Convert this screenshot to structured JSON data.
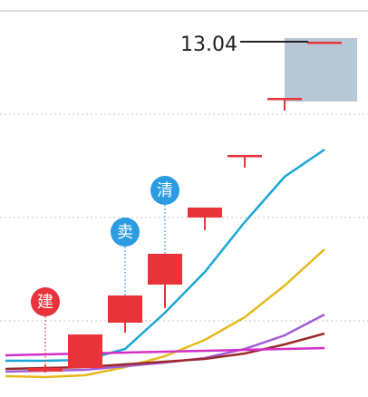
{
  "chart_data": {
    "type": "candlestick",
    "categories": [
      null,
      null,
      null,
      null,
      null,
      null,
      null,
      null,
      null
    ],
    "ylim": [
      9.12,
      13.5
    ],
    "grid_lines": [
      12.24,
      11.1,
      9.96
    ],
    "up_color": "#e8333a",
    "open": [
      null,
      9.4,
      9.44,
      9.94,
      10.36,
      11.1,
      11.77,
      12.4,
      13.02
    ],
    "close": [
      null,
      9.44,
      9.81,
      10.24,
      10.7,
      11.21,
      11.79,
      12.42,
      13.04
    ],
    "high": [
      null,
      9.47,
      9.81,
      10.24,
      10.7,
      11.21,
      11.79,
      12.42,
      13.04
    ],
    "low": [
      null,
      9.39,
      9.44,
      9.83,
      10.1,
      10.96,
      11.65,
      12.28,
      13.02
    ],
    "last_price": 13.04,
    "series": [
      {
        "color": "#1aa7d8",
        "values": [
          9.52,
          9.52,
          9.53,
          9.65,
          10.05,
          10.5,
          11.05,
          11.55,
          11.85
        ]
      },
      {
        "color": "#e6b81e",
        "values": [
          9.35,
          9.34,
          9.36,
          9.45,
          9.57,
          9.75,
          10.0,
          10.35,
          10.75
        ]
      },
      {
        "color": "#a45ad6",
        "values": [
          9.4,
          9.41,
          9.42,
          9.46,
          9.5,
          9.55,
          9.65,
          9.8,
          10.03
        ]
      },
      {
        "color": "#9a2a2a",
        "values": [
          9.43,
          9.44,
          9.45,
          9.48,
          9.51,
          9.54,
          9.6,
          9.7,
          9.82
        ]
      },
      {
        "color": "#d22fc8",
        "values": [
          9.58,
          9.59,
          9.6,
          9.61,
          9.62,
          9.63,
          9.64,
          9.65,
          9.66
        ]
      }
    ],
    "signals": [
      {
        "label": "建",
        "index": 1,
        "color": "#e8333a"
      },
      {
        "label": "卖",
        "index": 3,
        "color": "#2d9be0"
      },
      {
        "label": "清",
        "index": 4,
        "color": "#2d9be0"
      }
    ]
  }
}
